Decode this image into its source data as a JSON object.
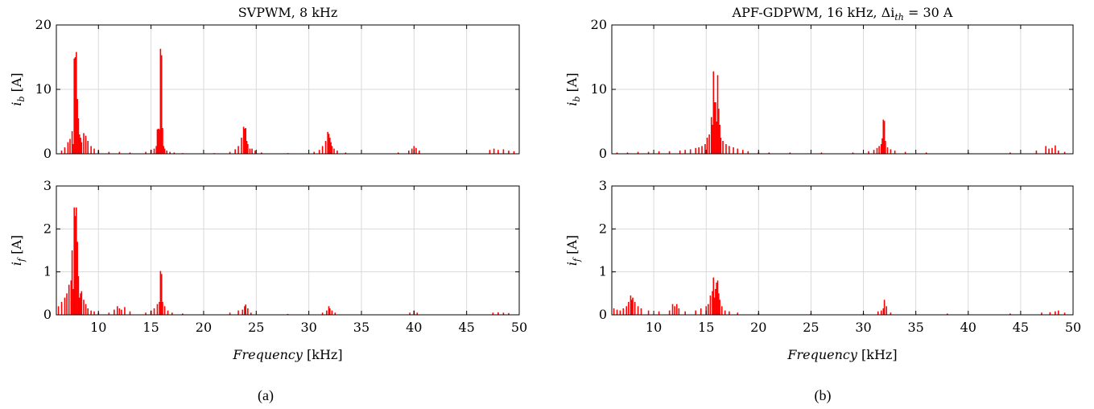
{
  "chart_data": [
    {
      "type": "bar",
      "panel": "a-top",
      "title": "SVPWM, 8 kHz",
      "ylabel_main": "i",
      "ylabel_sub": "b",
      "ylabel_unit": " [A]",
      "xlim": [
        6,
        50
      ],
      "ylim": [
        0,
        20
      ],
      "yticks": [
        0,
        10,
        20
      ],
      "xticks": [],
      "xlabel_main": "",
      "xlabel_unit": "",
      "series": [
        {
          "x": [
            6.5,
            6.8,
            7.1,
            7.3,
            7.5,
            7.6,
            7.7,
            7.8,
            7.9,
            8.0,
            8.1,
            8.2,
            8.3,
            8.4,
            8.6,
            8.8,
            9.0,
            9.3,
            9.6,
            10.0,
            11.0,
            12.0,
            13.0,
            14.5,
            15.0,
            15.3,
            15.5,
            15.6,
            15.7,
            15.8,
            15.9,
            16.0,
            16.1,
            16.2,
            16.3,
            16.5,
            16.8,
            17.2,
            18.0,
            21.0,
            22.5,
            23.0,
            23.3,
            23.6,
            23.8,
            23.9,
            24.0,
            24.1,
            24.2,
            24.4,
            24.6,
            24.9,
            25.5,
            28.0,
            30.5,
            31.0,
            31.3,
            31.6,
            31.8,
            31.9,
            32.0,
            32.1,
            32.2,
            32.4,
            32.7,
            33.5,
            38.5,
            39.5,
            39.8,
            40.0,
            40.2,
            40.5,
            47.2,
            47.6,
            48.0,
            48.5,
            49.0,
            49.5
          ],
          "y": [
            0.5,
            1.0,
            1.8,
            2.3,
            3.5,
            1.5,
            14.8,
            15.0,
            15.8,
            8.5,
            5.5,
            3.0,
            2.5,
            1.8,
            3.2,
            2.8,
            2.0,
            1.2,
            0.8,
            0.5,
            0.3,
            0.3,
            0.2,
            0.3,
            0.6,
            0.8,
            1.2,
            3.8,
            3.9,
            3.8,
            16.3,
            15.3,
            4.0,
            1.2,
            0.8,
            0.5,
            0.3,
            0.2,
            0.1,
            0.1,
            0.3,
            0.7,
            1.2,
            2.5,
            4.2,
            3.9,
            4.0,
            2.0,
            1.5,
            0.8,
            0.8,
            0.5,
            0.2,
            0.1,
            0.3,
            0.6,
            1.2,
            2.0,
            3.4,
            3.1,
            2.5,
            1.8,
            1.2,
            0.8,
            0.5,
            0.2,
            0.2,
            0.5,
            0.8,
            1.2,
            0.9,
            0.5,
            0.6,
            0.8,
            0.6,
            0.7,
            0.5,
            0.4
          ]
        }
      ]
    },
    {
      "type": "bar",
      "panel": "a-bottom",
      "title": "",
      "ylabel_main": "i",
      "ylabel_sub": "f",
      "ylabel_unit": " [A]",
      "xlim": [
        6,
        50
      ],
      "ylim": [
        0,
        3
      ],
      "yticks": [
        0,
        1,
        2,
        3
      ],
      "xticks": [
        10,
        15,
        20,
        25,
        30,
        35,
        40,
        45,
        50
      ],
      "xlabel_main": "Frequency",
      "xlabel_unit": " [kHz]",
      "series": [
        {
          "x": [
            6.2,
            6.5,
            6.8,
            7.0,
            7.2,
            7.4,
            7.5,
            7.6,
            7.7,
            7.8,
            7.9,
            8.0,
            8.1,
            8.2,
            8.3,
            8.4,
            8.6,
            8.8,
            9.0,
            9.3,
            9.6,
            10.0,
            11.0,
            11.5,
            11.8,
            12.0,
            12.2,
            12.5,
            13.0,
            14.5,
            15.0,
            15.3,
            15.6,
            15.8,
            15.9,
            16.0,
            16.1,
            16.3,
            16.6,
            17.0,
            18.0,
            22.5,
            23.3,
            23.7,
            23.9,
            24.0,
            24.2,
            24.5,
            28.0,
            31.3,
            31.7,
            31.9,
            32.0,
            32.2,
            32.5,
            39.6,
            40.0,
            40.3,
            47.5,
            48.0,
            48.5,
            49.0
          ],
          "y": [
            0.2,
            0.3,
            0.4,
            0.5,
            0.7,
            0.8,
            1.5,
            0.6,
            2.5,
            2.3,
            2.5,
            1.7,
            0.9,
            0.4,
            0.5,
            0.55,
            0.35,
            0.25,
            0.15,
            0.1,
            0.08,
            0.05,
            0.05,
            0.12,
            0.2,
            0.15,
            0.12,
            0.18,
            0.08,
            0.05,
            0.1,
            0.15,
            0.25,
            0.3,
            1.02,
            0.95,
            0.3,
            0.2,
            0.1,
            0.05,
            0.03,
            0.05,
            0.1,
            0.12,
            0.2,
            0.24,
            0.15,
            0.05,
            0.02,
            0.05,
            0.1,
            0.2,
            0.15,
            0.1,
            0.05,
            0.05,
            0.1,
            0.05,
            0.05,
            0.06,
            0.05,
            0.04
          ]
        }
      ]
    },
    {
      "type": "bar",
      "panel": "b-top",
      "title": "APF-GDPWM, 16 kHz, Δi",
      "title_sub": "th",
      "title_tail": " = 30 A",
      "ylabel_main": "i",
      "ylabel_sub": "b",
      "ylabel_unit": " [A]",
      "xlim": [
        6,
        50
      ],
      "ylim": [
        0,
        20
      ],
      "yticks": [
        0,
        10,
        20
      ],
      "xticks": [],
      "xlabel_main": "",
      "xlabel_unit": "",
      "series": [
        {
          "x": [
            6.5,
            7.5,
            8.5,
            9.5,
            10.5,
            11.5,
            12.5,
            13.0,
            13.5,
            14.0,
            14.3,
            14.6,
            14.9,
            15.1,
            15.3,
            15.5,
            15.6,
            15.7,
            15.8,
            15.9,
            16.0,
            16.1,
            16.2,
            16.3,
            16.4,
            16.6,
            16.9,
            17.2,
            17.6,
            18.0,
            18.5,
            19.0,
            20.0,
            21.0,
            23.0,
            26.0,
            29.0,
            30.5,
            31.0,
            31.3,
            31.5,
            31.7,
            31.8,
            31.9,
            32.0,
            32.1,
            32.3,
            32.6,
            33.0,
            34.0,
            36.0,
            40.0,
            44.0,
            46.5,
            47.4,
            47.7,
            48.0,
            48.3,
            48.6,
            49.2
          ],
          "y": [
            0.2,
            0.2,
            0.3,
            0.3,
            0.4,
            0.4,
            0.5,
            0.6,
            0.7,
            0.9,
            1.0,
            1.2,
            1.5,
            2.5,
            3.0,
            5.7,
            4.5,
            12.8,
            8.0,
            8.0,
            5.0,
            12.2,
            7.0,
            4.5,
            2.5,
            2.0,
            1.5,
            1.2,
            1.0,
            0.8,
            0.6,
            0.4,
            0.3,
            0.2,
            0.2,
            0.2,
            0.2,
            0.4,
            0.6,
            0.9,
            1.2,
            1.5,
            2.4,
            5.3,
            5.1,
            2.0,
            1.0,
            0.7,
            0.5,
            0.3,
            0.2,
            0.2,
            0.2,
            0.5,
            1.2,
            0.8,
            0.9,
            1.3,
            0.5,
            0.3
          ]
        }
      ]
    },
    {
      "type": "bar",
      "panel": "b-bottom",
      "title": "",
      "ylabel_main": "i",
      "ylabel_sub": "f",
      "ylabel_unit": " [A]",
      "xlim": [
        6,
        50
      ],
      "ylim": [
        0,
        3
      ],
      "yticks": [
        0,
        1,
        2,
        3
      ],
      "xticks": [
        10,
        15,
        20,
        25,
        30,
        35,
        40,
        45,
        50
      ],
      "xlabel_main": "Frequency",
      "xlabel_unit": " [kHz]",
      "series": [
        {
          "x": [
            6.2,
            6.5,
            6.8,
            7.1,
            7.4,
            7.6,
            7.8,
            7.9,
            8.0,
            8.2,
            8.5,
            8.8,
            9.5,
            10.5,
            11.5,
            11.8,
            12.0,
            12.2,
            12.4,
            13.0,
            14.0,
            14.5,
            15.0,
            15.2,
            15.4,
            15.6,
            15.7,
            15.8,
            15.9,
            16.0,
            16.1,
            16.2,
            16.3,
            16.5,
            16.8,
            17.2,
            18.0,
            20.0,
            25.0,
            30.0,
            31.4,
            31.7,
            31.9,
            32.0,
            32.2,
            32.6,
            38.0,
            44.0,
            47.0,
            47.8,
            48.3,
            48.6,
            49.2
          ],
          "y": [
            0.15,
            0.12,
            0.1,
            0.15,
            0.2,
            0.3,
            0.45,
            0.35,
            0.4,
            0.3,
            0.2,
            0.15,
            0.1,
            0.08,
            0.1,
            0.25,
            0.2,
            0.25,
            0.15,
            0.08,
            0.1,
            0.15,
            0.2,
            0.25,
            0.45,
            0.55,
            0.87,
            0.4,
            0.6,
            0.75,
            0.8,
            0.5,
            0.35,
            0.2,
            0.1,
            0.08,
            0.05,
            0.04,
            0.03,
            0.03,
            0.08,
            0.1,
            0.15,
            0.35,
            0.2,
            0.05,
            0.03,
            0.03,
            0.05,
            0.06,
            0.08,
            0.1,
            0.05
          ]
        }
      ]
    }
  ],
  "captions": {
    "a": "(a)",
    "b": "(b)"
  },
  "colors": {
    "series": "#ff0000",
    "grid": "#d9d9d9"
  }
}
